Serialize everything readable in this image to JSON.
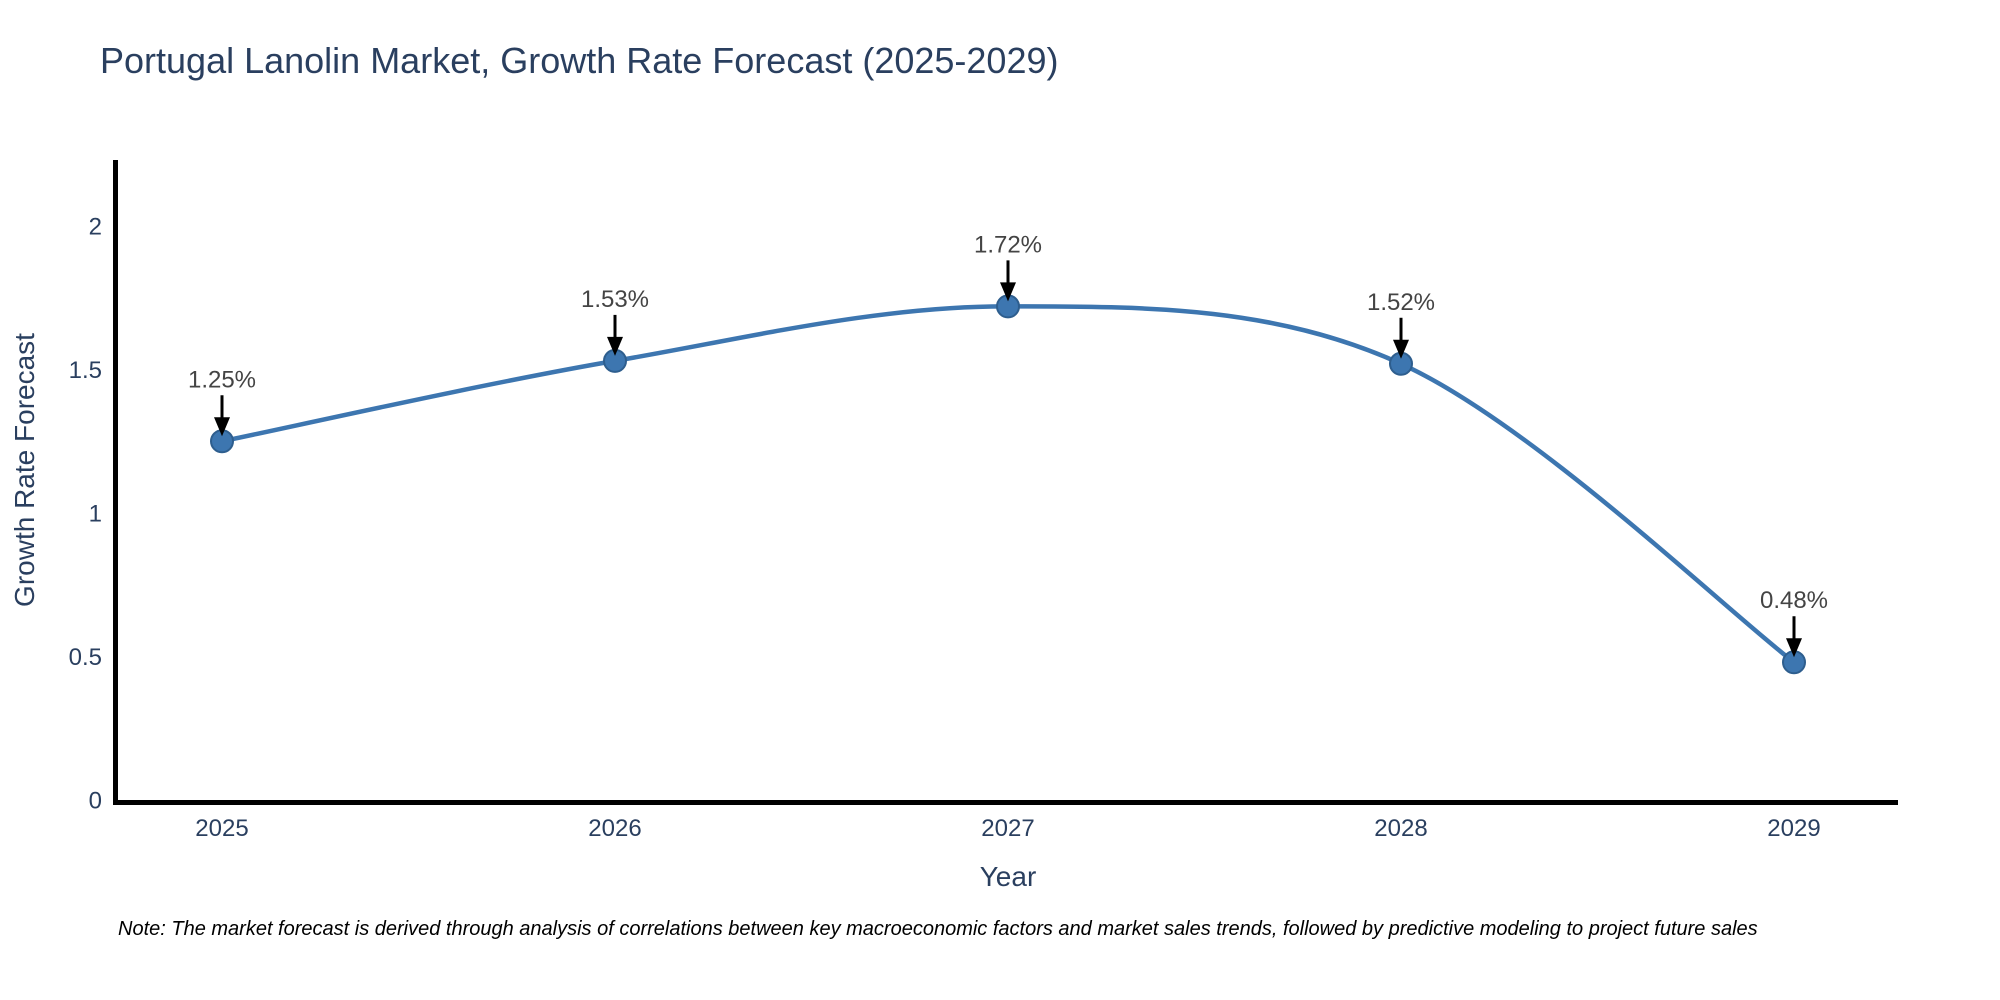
{
  "title": {
    "text": "Portugal Lanolin Market, Growth Rate Forecast (2025-2029)",
    "color": "#2a3f5f"
  },
  "note": "Note: The market forecast is derived through analysis of correlations between key macroeconomic factors and market sales trends, followed by predictive modeling to project future sales",
  "chart_data": {
    "type": "line",
    "line_shape": "spline",
    "title": "Portugal Lanolin Market, Growth Rate Forecast (2025-2029)",
    "xlabel": "Year",
    "ylabel": "Growth Rate Forecast",
    "categories": [
      "2025",
      "2026",
      "2027",
      "2028",
      "2029"
    ],
    "series": [
      {
        "name": "Growth Rate Forecast",
        "values": [
          1.25,
          1.53,
          1.72,
          1.52,
          0.48
        ],
        "point_labels": [
          "1.25%",
          "1.53%",
          "1.72%",
          "1.52%",
          "0.48%"
        ]
      }
    ],
    "yticks": [
      0,
      0.5,
      1,
      1.5,
      2
    ],
    "ytick_labels": [
      "0",
      "0.5",
      "1",
      "1.5",
      "2"
    ],
    "ylim": [
      0,
      2.23
    ],
    "grid": false,
    "legend": "none",
    "colors": {
      "line": "#3d76b0",
      "marker": "#3d76b0",
      "marker_edge": "#2e5e8e",
      "axis_line": "#000000",
      "tick_text": "#2a3f5f",
      "axis_title_text": "#2a3f5f",
      "annotation_text": "#444444",
      "annotation_arrow": "#000000",
      "background": "#ffffff"
    }
  }
}
